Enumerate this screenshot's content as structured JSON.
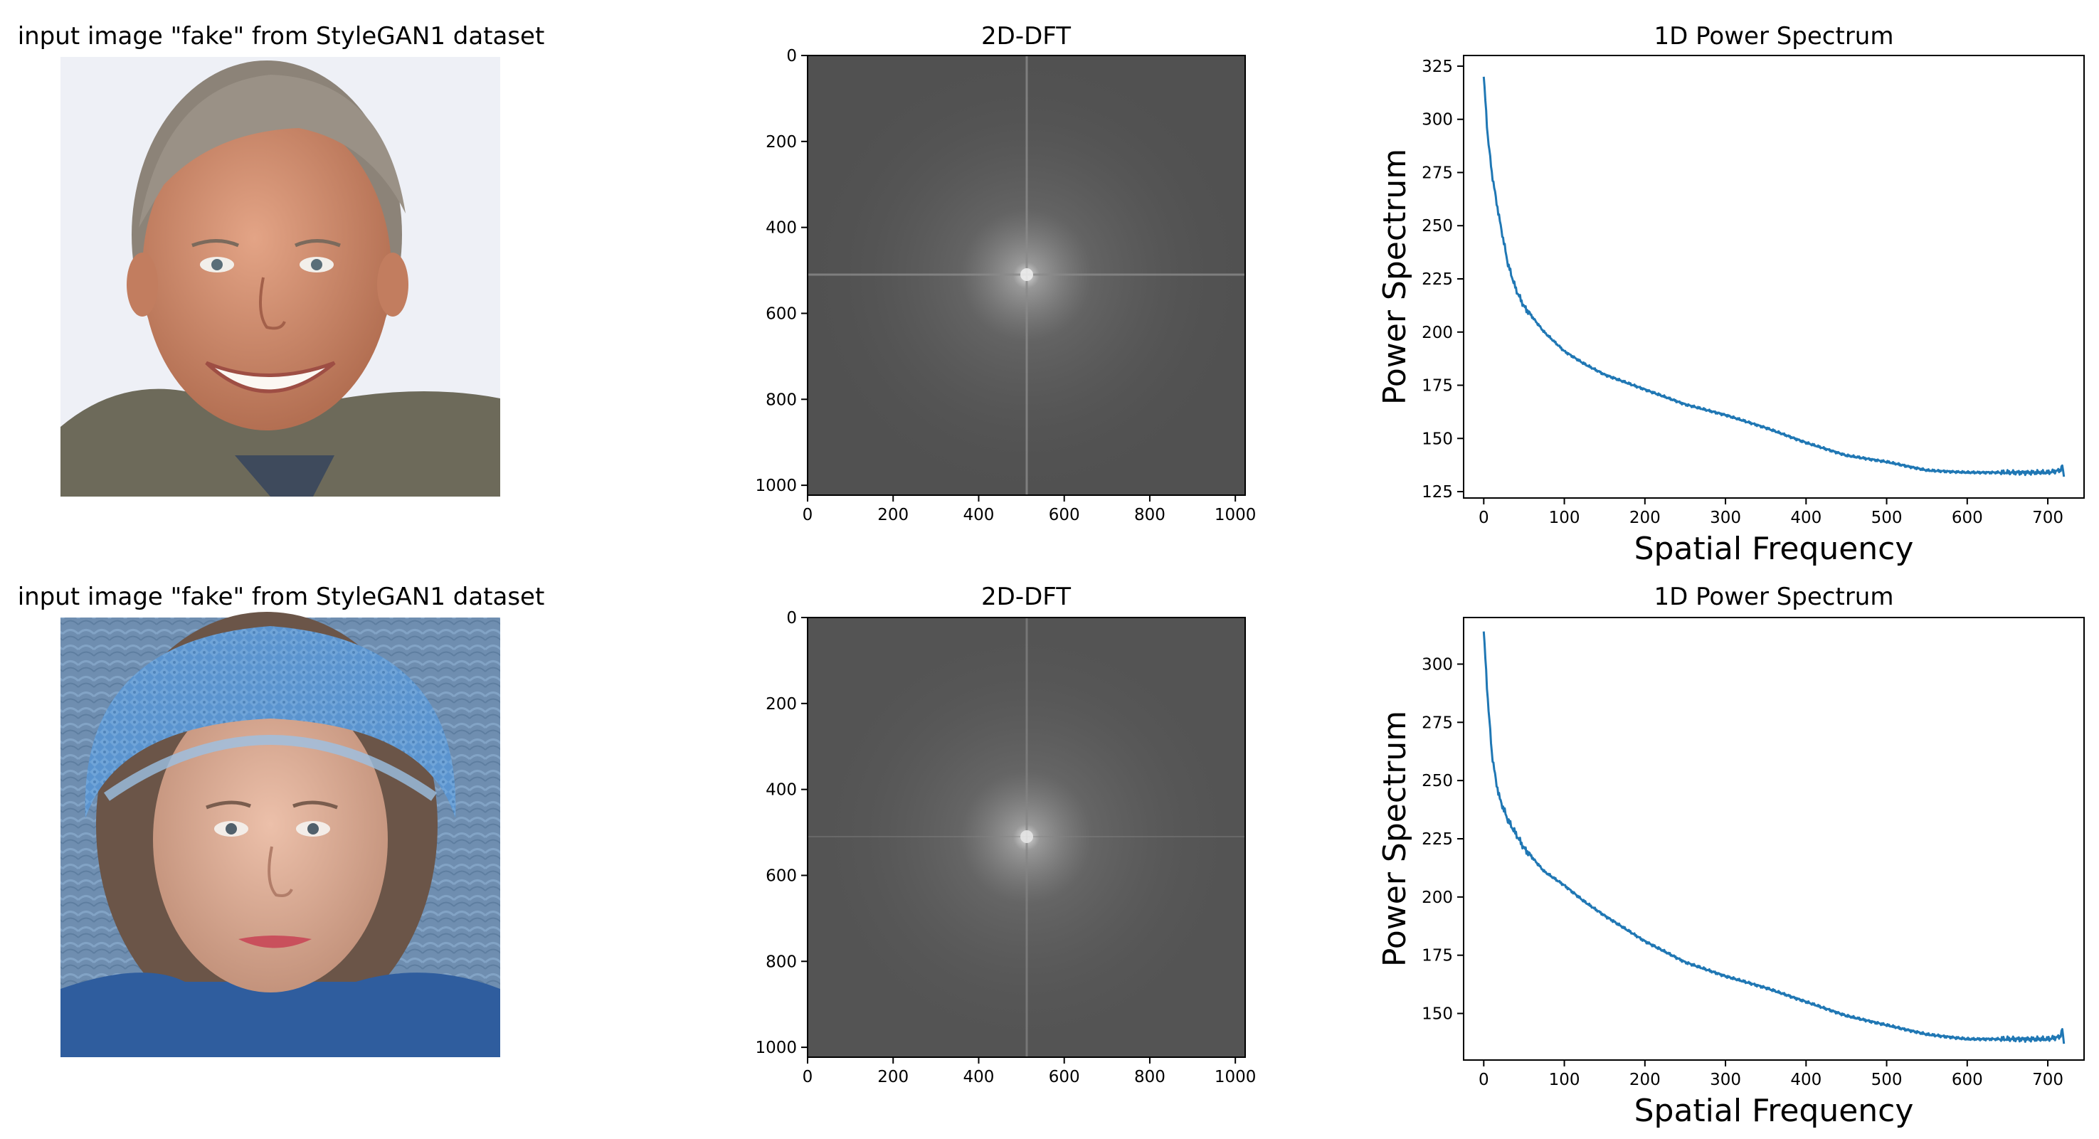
{
  "figure": {
    "rows": [
      {
        "input_title": "input image \"fake\" from StyleGAN1 dataset",
        "photo_subject": "smiling-man",
        "photo_colors": {
          "background": "#eef0f6",
          "skin": "#c98a6c",
          "hair": "#8c8378",
          "shirt": "#6d6a5a"
        },
        "dft_title": "2D-DFT",
        "spectrum_title": "1D Power Spectrum"
      },
      {
        "input_title": "input image \"fake\" from StyleGAN1 dataset",
        "photo_subject": "girl-in-blue-knit-hat",
        "photo_colors": {
          "background": "#6f8eb0",
          "skin": "#d7a892",
          "hair": "#6b5548",
          "hat": "#5b94cf"
        },
        "dft_title": "2D-DFT",
        "spectrum_title": "1D Power Spectrum"
      }
    ]
  },
  "chart_data": [
    {
      "type": "heatmap",
      "title": "2D-DFT",
      "xlim": [
        0,
        1023
      ],
      "ylim": [
        1023,
        0
      ],
      "xticks": [
        0,
        200,
        400,
        600,
        800,
        1000
      ],
      "yticks": [
        0,
        200,
        400,
        600,
        800,
        1000
      ],
      "center": [
        512,
        512
      ],
      "colormap": "gray",
      "background_level": "#515151",
      "center_peak": "#d8d8d8"
    },
    {
      "type": "line",
      "title": "1D Power Spectrum",
      "xlabel": "Spatial Frequency",
      "ylabel": "Power Spectrum",
      "xlim": [
        -25,
        745
      ],
      "ylim": [
        122,
        330
      ],
      "xticks": [
        0,
        100,
        200,
        300,
        400,
        500,
        600,
        700
      ],
      "yticks": [
        125,
        150,
        175,
        200,
        225,
        250,
        275,
        300,
        325
      ],
      "grid": false,
      "color": "#1f77b4",
      "x": [
        0,
        5,
        10,
        15,
        20,
        30,
        40,
        50,
        75,
        100,
        125,
        150,
        200,
        250,
        300,
        350,
        400,
        450,
        500,
        550,
        600,
        650,
        700,
        715,
        718,
        720
      ],
      "y": [
        320,
        292,
        275,
        263,
        252,
        232,
        220,
        212,
        200,
        191,
        185,
        180,
        173,
        166,
        161,
        155,
        148,
        142,
        139,
        135,
        134,
        134,
        134,
        135,
        137,
        132
      ]
    },
    {
      "type": "heatmap",
      "title": "2D-DFT",
      "xlim": [
        0,
        1023
      ],
      "ylim": [
        1023,
        0
      ],
      "xticks": [
        0,
        200,
        400,
        600,
        800,
        1000
      ],
      "yticks": [
        0,
        200,
        400,
        600,
        800,
        1000
      ],
      "center": [
        512,
        512
      ],
      "colormap": "gray",
      "background_level": "#545454",
      "center_peak": "#d0d0d0"
    },
    {
      "type": "line",
      "title": "1D Power Spectrum",
      "xlabel": "Spatial Frequency",
      "ylabel": "Power Spectrum",
      "xlim": [
        -25,
        745
      ],
      "ylim": [
        130,
        320
      ],
      "xticks": [
        0,
        100,
        200,
        300,
        400,
        500,
        600,
        700
      ],
      "yticks": [
        150,
        175,
        200,
        225,
        250,
        275,
        300
      ],
      "grid": false,
      "color": "#1f77b4",
      "x": [
        0,
        5,
        10,
        15,
        20,
        30,
        40,
        50,
        75,
        100,
        125,
        150,
        200,
        250,
        300,
        350,
        400,
        450,
        500,
        550,
        600,
        650,
        700,
        715,
        718,
        720
      ],
      "y": [
        314,
        285,
        262,
        250,
        242,
        233,
        227,
        221,
        211,
        205,
        198,
        192,
        181,
        172,
        166,
        161,
        155,
        149,
        145,
        141,
        139,
        139,
        139,
        140,
        143,
        137
      ]
    }
  ]
}
